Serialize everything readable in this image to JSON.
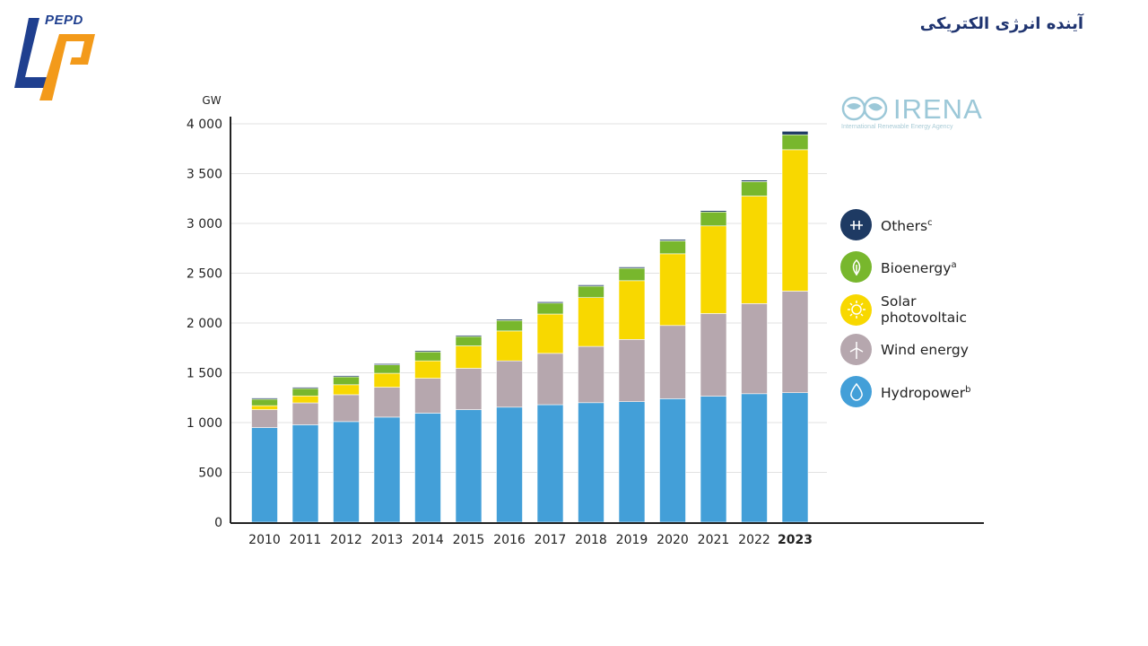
{
  "header": {
    "logo_text": "PEPD",
    "slide_title": "آینده انرژی الکتریکی"
  },
  "source_logo": {
    "name": "IRENA",
    "subtitle": "International Renewable Energy Agency"
  },
  "colors": {
    "hydropower": "#439fd8",
    "wind": "#b6a7ae",
    "solar": "#f8d800",
    "bioenergy": "#78b72d",
    "others": "#1e3a63",
    "grid": "#e2e2e2",
    "axis": "#222222"
  },
  "legend": [
    {
      "key": "others",
      "label": "Others",
      "sup": "c",
      "icon": "plus-cross-icon"
    },
    {
      "key": "bioenergy",
      "label": "Bioenergy",
      "sup": "a",
      "icon": "leaf-icon"
    },
    {
      "key": "solar",
      "label": "Solar\nphotovoltaic",
      "sup": "",
      "icon": "sun-icon"
    },
    {
      "key": "wind",
      "label": "Wind energy",
      "sup": "",
      "icon": "wind-turbine-icon"
    },
    {
      "key": "hydropower",
      "label": "Hydropower",
      "sup": "b",
      "icon": "water-drop-icon"
    }
  ],
  "chart_data": {
    "type": "bar",
    "stacked": true,
    "ylabel": "GW",
    "ylim": [
      0,
      4000
    ],
    "yticks": [
      0,
      500,
      1000,
      1500,
      2000,
      2500,
      3000,
      3500,
      4000
    ],
    "ytick_labels": [
      "0",
      "500",
      "1 000",
      "1 500",
      "2 000",
      "2 500",
      "3 000",
      "3 500",
      "4 000"
    ],
    "categories": [
      "2010",
      "2011",
      "2012",
      "2013",
      "2014",
      "2015",
      "2016",
      "2017",
      "2018",
      "2019",
      "2020",
      "2021",
      "2022",
      "2023"
    ],
    "bold_category": "2023",
    "grid": true,
    "legend_position": "right",
    "series": [
      {
        "name": "Hydropower",
        "key": "hydropower",
        "values": [
          950,
          978,
          1010,
          1055,
          1095,
          1130,
          1155,
          1180,
          1200,
          1210,
          1240,
          1265,
          1290,
          1300
        ]
      },
      {
        "name": "Wind energy",
        "key": "wind",
        "values": [
          180,
          220,
          270,
          300,
          350,
          415,
          465,
          515,
          565,
          625,
          735,
          830,
          905,
          1020
        ]
      },
      {
        "name": "Solar photovoltaic",
        "key": "solar",
        "values": [
          40,
          70,
          100,
          140,
          175,
          225,
          300,
          395,
          490,
          590,
          720,
          880,
          1080,
          1420
        ]
      },
      {
        "name": "Bioenergy",
        "key": "bioenergy",
        "values": [
          65,
          75,
          80,
          85,
          90,
          95,
          105,
          110,
          115,
          125,
          130,
          140,
          145,
          150
        ]
      },
      {
        "name": "Others",
        "key": "others",
        "values": [
          12,
          12,
          12,
          12,
          12,
          12,
          13,
          13,
          13,
          13,
          14,
          14,
          15,
          35
        ]
      }
    ]
  }
}
